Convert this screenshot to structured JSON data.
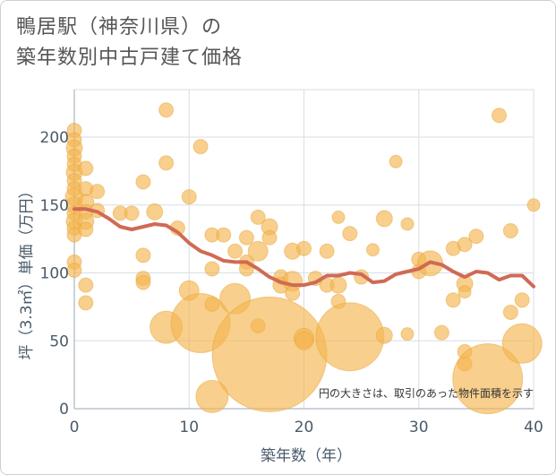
{
  "title_line1": "鴨居駅（神奈川県）の",
  "title_line2": "築年数別中古戸建て価格",
  "chart_data": {
    "type": "scatter",
    "xlabel": "築年数（年）",
    "ylabel": "坪（3.3㎡）単価（万円）",
    "xlim": [
      0,
      40
    ],
    "ylim": [
      0,
      235
    ],
    "xticks": [
      0,
      10,
      20,
      30,
      40
    ],
    "yticks": [
      0,
      50,
      100,
      150,
      200
    ],
    "note": "円の大きさは、取引のあった物件面積を示す",
    "colors": {
      "bubble": "#f4b650",
      "bubble_stroke": "#e8a53a",
      "line": "#d06a55",
      "grid": "#d8dee6"
    },
    "scatter": [
      {
        "x": 0,
        "y": 205,
        "s": 8
      },
      {
        "x": 0,
        "y": 198,
        "s": 8
      },
      {
        "x": 0,
        "y": 192,
        "s": 9
      },
      {
        "x": 0,
        "y": 186,
        "s": 8
      },
      {
        "x": 0,
        "y": 180,
        "s": 8
      },
      {
        "x": 0,
        "y": 174,
        "s": 9
      },
      {
        "x": 0,
        "y": 168,
        "s": 8
      },
      {
        "x": 0,
        "y": 162,
        "s": 8
      },
      {
        "x": 0,
        "y": 156,
        "s": 10
      },
      {
        "x": 0,
        "y": 150,
        "s": 9
      },
      {
        "x": 0,
        "y": 144,
        "s": 8
      },
      {
        "x": 0,
        "y": 138,
        "s": 9
      },
      {
        "x": 0,
        "y": 133,
        "s": 8
      },
      {
        "x": 0,
        "y": 128,
        "s": 8
      },
      {
        "x": 0,
        "y": 108,
        "s": 8
      },
      {
        "x": 0,
        "y": 102,
        "s": 8
      },
      {
        "x": 1,
        "y": 177,
        "s": 8
      },
      {
        "x": 1,
        "y": 162,
        "s": 8
      },
      {
        "x": 1,
        "y": 152,
        "s": 9
      },
      {
        "x": 1,
        "y": 145,
        "s": 8
      },
      {
        "x": 1,
        "y": 138,
        "s": 9
      },
      {
        "x": 1,
        "y": 132,
        "s": 8
      },
      {
        "x": 1,
        "y": 91,
        "s": 8
      },
      {
        "x": 1,
        "y": 78,
        "s": 8
      },
      {
        "x": 2,
        "y": 160,
        "s": 8
      },
      {
        "x": 2,
        "y": 146,
        "s": 8
      },
      {
        "x": 4,
        "y": 144,
        "s": 8
      },
      {
        "x": 5,
        "y": 144,
        "s": 8
      },
      {
        "x": 6,
        "y": 167,
        "s": 8
      },
      {
        "x": 6,
        "y": 113,
        "s": 8
      },
      {
        "x": 6,
        "y": 96,
        "s": 8
      },
      {
        "x": 6,
        "y": 93,
        "s": 8
      },
      {
        "x": 7,
        "y": 145,
        "s": 9
      },
      {
        "x": 8,
        "y": 220,
        "s": 8
      },
      {
        "x": 8,
        "y": 181,
        "s": 8
      },
      {
        "x": 8,
        "y": 60,
        "s": 18
      },
      {
        "x": 9,
        "y": 133,
        "s": 8
      },
      {
        "x": 10,
        "y": 156,
        "s": 8
      },
      {
        "x": 10,
        "y": 87,
        "s": 11
      },
      {
        "x": 11,
        "y": 193,
        "s": 8
      },
      {
        "x": 11,
        "y": 63,
        "s": 33
      },
      {
        "x": 12,
        "y": 128,
        "s": 8
      },
      {
        "x": 12,
        "y": 103,
        "s": 8
      },
      {
        "x": 12,
        "y": 77,
        "s": 8
      },
      {
        "x": 12,
        "y": 9,
        "s": 18
      },
      {
        "x": 13,
        "y": 128,
        "s": 8
      },
      {
        "x": 14,
        "y": 116,
        "s": 8
      },
      {
        "x": 14,
        "y": 81,
        "s": 17
      },
      {
        "x": 15,
        "y": 126,
        "s": 8
      },
      {
        "x": 15,
        "y": 108,
        "s": 8
      },
      {
        "x": 15,
        "y": 103,
        "s": 8
      },
      {
        "x": 16,
        "y": 141,
        "s": 8
      },
      {
        "x": 16,
        "y": 116,
        "s": 11
      },
      {
        "x": 16,
        "y": 61,
        "s": 8
      },
      {
        "x": 17,
        "y": 134,
        "s": 9
      },
      {
        "x": 17,
        "y": 126,
        "s": 8
      },
      {
        "x": 17,
        "y": 40,
        "s": 64
      },
      {
        "x": 18,
        "y": 97,
        "s": 8
      },
      {
        "x": 18,
        "y": 91,
        "s": 9
      },
      {
        "x": 19,
        "y": 116,
        "s": 9
      },
      {
        "x": 19,
        "y": 94,
        "s": 11
      },
      {
        "x": 19,
        "y": 85,
        "s": 8
      },
      {
        "x": 20,
        "y": 118,
        "s": 8
      },
      {
        "x": 20,
        "y": 52,
        "s": 11
      },
      {
        "x": 20,
        "y": 50,
        "s": 10
      },
      {
        "x": 21,
        "y": 96,
        "s": 8
      },
      {
        "x": 22,
        "y": 116,
        "s": 8
      },
      {
        "x": 22,
        "y": 91,
        "s": 8
      },
      {
        "x": 23,
        "y": 141,
        "s": 7
      },
      {
        "x": 23,
        "y": 91,
        "s": 9
      },
      {
        "x": 23,
        "y": 79,
        "s": 8
      },
      {
        "x": 24,
        "y": 129,
        "s": 8
      },
      {
        "x": 24,
        "y": 53,
        "s": 38
      },
      {
        "x": 25,
        "y": 97,
        "s": 8
      },
      {
        "x": 26,
        "y": 117,
        "s": 7
      },
      {
        "x": 27,
        "y": 140,
        "s": 9
      },
      {
        "x": 27,
        "y": 54,
        "s": 9
      },
      {
        "x": 28,
        "y": 182,
        "s": 7
      },
      {
        "x": 29,
        "y": 136,
        "s": 7
      },
      {
        "x": 29,
        "y": 55,
        "s": 7
      },
      {
        "x": 30,
        "y": 110,
        "s": 8
      },
      {
        "x": 30,
        "y": 101,
        "s": 8
      },
      {
        "x": 31,
        "y": 107,
        "s": 14
      },
      {
        "x": 32,
        "y": 56,
        "s": 8
      },
      {
        "x": 33,
        "y": 118,
        "s": 8
      },
      {
        "x": 33,
        "y": 80,
        "s": 8
      },
      {
        "x": 34,
        "y": 121,
        "s": 8
      },
      {
        "x": 34,
        "y": 92,
        "s": 9
      },
      {
        "x": 34,
        "y": 86,
        "s": 7
      },
      {
        "x": 34,
        "y": 42,
        "s": 8
      },
      {
        "x": 34,
        "y": 33,
        "s": 8
      },
      {
        "x": 35,
        "y": 127,
        "s": 8
      },
      {
        "x": 36,
        "y": 22,
        "s": 39
      },
      {
        "x": 37,
        "y": 216,
        "s": 8
      },
      {
        "x": 38,
        "y": 131,
        "s": 8
      },
      {
        "x": 38,
        "y": 71,
        "s": 8
      },
      {
        "x": 39,
        "y": 80,
        "s": 8
      },
      {
        "x": 39,
        "y": 48,
        "s": 22
      },
      {
        "x": 40,
        "y": 150,
        "s": 7
      }
    ],
    "trend": [
      {
        "x": 0,
        "y": 147
      },
      {
        "x": 1,
        "y": 147
      },
      {
        "x": 2,
        "y": 145
      },
      {
        "x": 3,
        "y": 140
      },
      {
        "x": 4,
        "y": 134
      },
      {
        "x": 5,
        "y": 132
      },
      {
        "x": 6,
        "y": 134
      },
      {
        "x": 7,
        "y": 136
      },
      {
        "x": 8,
        "y": 135
      },
      {
        "x": 9,
        "y": 130
      },
      {
        "x": 10,
        "y": 122
      },
      {
        "x": 11,
        "y": 116
      },
      {
        "x": 12,
        "y": 113
      },
      {
        "x": 13,
        "y": 109
      },
      {
        "x": 14,
        "y": 108
      },
      {
        "x": 15,
        "y": 108
      },
      {
        "x": 16,
        "y": 103
      },
      {
        "x": 17,
        "y": 97
      },
      {
        "x": 18,
        "y": 93
      },
      {
        "x": 19,
        "y": 91
      },
      {
        "x": 20,
        "y": 91
      },
      {
        "x": 21,
        "y": 93
      },
      {
        "x": 22,
        "y": 98
      },
      {
        "x": 23,
        "y": 98
      },
      {
        "x": 24,
        "y": 100
      },
      {
        "x": 25,
        "y": 99
      },
      {
        "x": 26,
        "y": 93
      },
      {
        "x": 27,
        "y": 94
      },
      {
        "x": 28,
        "y": 99
      },
      {
        "x": 29,
        "y": 101
      },
      {
        "x": 30,
        "y": 103
      },
      {
        "x": 31,
        "y": 108
      },
      {
        "x": 32,
        "y": 106
      },
      {
        "x": 33,
        "y": 101
      },
      {
        "x": 34,
        "y": 97
      },
      {
        "x": 35,
        "y": 101
      },
      {
        "x": 36,
        "y": 100
      },
      {
        "x": 37,
        "y": 95
      },
      {
        "x": 38,
        "y": 98
      },
      {
        "x": 39,
        "y": 98
      },
      {
        "x": 40,
        "y": 90
      }
    ]
  }
}
